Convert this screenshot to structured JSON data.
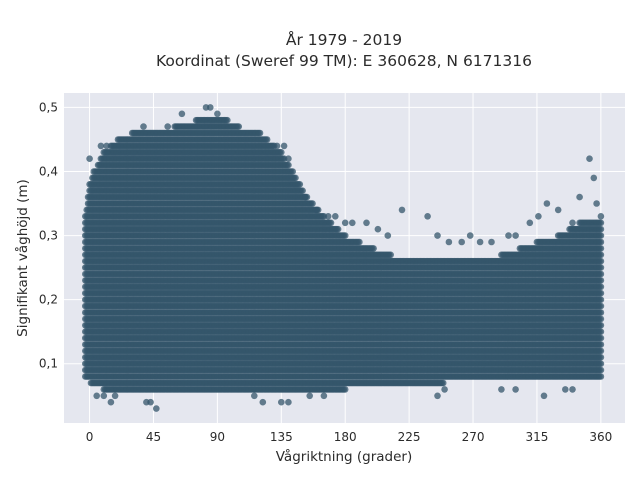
{
  "chart_data": {
    "type": "scatter",
    "title": "År 1979 - 2019",
    "subtitle": "Koordinat (Sweref 99 TM): E 360628, N 6171316",
    "xlabel": "Vågriktning (grader)",
    "ylabel": "Signifikant våghöjd (m)",
    "xlim": [
      -18,
      377
    ],
    "ylim": [
      0.0075,
      0.5225
    ],
    "x_ticks": [
      0,
      45,
      90,
      135,
      180,
      225,
      270,
      315,
      360
    ],
    "x_tick_labels": [
      "0",
      "45",
      "90",
      "135",
      "180",
      "225",
      "270",
      "315",
      "360"
    ],
    "y_ticks": [
      0.1,
      0.2,
      0.3,
      0.4,
      0.5
    ],
    "y_tick_labels": [
      "0,1",
      "0,2",
      "0,3",
      "0,4",
      "0,5"
    ],
    "grid": true,
    "colors": {
      "marker": "#34566b",
      "plot_bg": "#e5e7ef",
      "grid": "#ffffff"
    },
    "series": [
      {
        "envelope": {
          "x": [
            -3,
            0,
            10,
            20,
            30,
            45,
            60,
            75,
            90,
            105,
            120,
            135,
            150,
            165,
            180,
            200,
            225,
            250,
            270,
            290,
            315,
            330,
            345,
            360
          ],
          "y_max": [
            0.33,
            0.38,
            0.43,
            0.45,
            0.46,
            0.46,
            0.47,
            0.48,
            0.49,
            0.47,
            0.46,
            0.43,
            0.37,
            0.33,
            0.3,
            0.28,
            0.26,
            0.26,
            0.26,
            0.27,
            0.29,
            0.3,
            0.32,
            0.33
          ],
          "y_min": [
            0.07,
            0.07,
            0.06,
            0.06,
            0.06,
            0.055,
            0.055,
            0.055,
            0.055,
            0.055,
            0.055,
            0.055,
            0.06,
            0.06,
            0.06,
            0.065,
            0.065,
            0.07,
            0.07,
            0.07,
            0.07,
            0.07,
            0.07,
            0.07
          ]
        },
        "outliers": [
          [
            0,
            0.42
          ],
          [
            3,
            0.4
          ],
          [
            8,
            0.44
          ],
          [
            12,
            0.44
          ],
          [
            5,
            0.05
          ],
          [
            10,
            0.05
          ],
          [
            15,
            0.04
          ],
          [
            18,
            0.05
          ],
          [
            40,
            0.04
          ],
          [
            43,
            0.04
          ],
          [
            47,
            0.03
          ],
          [
            38,
            0.47
          ],
          [
            55,
            0.47
          ],
          [
            65,
            0.49
          ],
          [
            82,
            0.5
          ],
          [
            85,
            0.5
          ],
          [
            132,
            0.44
          ],
          [
            137,
            0.44
          ],
          [
            140,
            0.42
          ],
          [
            143,
            0.4
          ],
          [
            148,
            0.38
          ],
          [
            152,
            0.36
          ],
          [
            160,
            0.34
          ],
          [
            168,
            0.33
          ],
          [
            173,
            0.33
          ],
          [
            180,
            0.32
          ],
          [
            185,
            0.32
          ],
          [
            195,
            0.32
          ],
          [
            203,
            0.31
          ],
          [
            210,
            0.3
          ],
          [
            220,
            0.34
          ],
          [
            238,
            0.33
          ],
          [
            245,
            0.3
          ],
          [
            253,
            0.29
          ],
          [
            262,
            0.29
          ],
          [
            268,
            0.3
          ],
          [
            275,
            0.29
          ],
          [
            283,
            0.29
          ],
          [
            295,
            0.3
          ],
          [
            300,
            0.3
          ],
          [
            310,
            0.32
          ],
          [
            316,
            0.33
          ],
          [
            322,
            0.35
          ],
          [
            330,
            0.34
          ],
          [
            340,
            0.32
          ],
          [
            345,
            0.36
          ],
          [
            352,
            0.42
          ],
          [
            355,
            0.39
          ],
          [
            357,
            0.35
          ],
          [
            135,
            0.04
          ],
          [
            140,
            0.04
          ],
          [
            155,
            0.05
          ],
          [
            165,
            0.05
          ],
          [
            245,
            0.05
          ],
          [
            250,
            0.06
          ],
          [
            290,
            0.06
          ],
          [
            300,
            0.06
          ],
          [
            320,
            0.05
          ],
          [
            335,
            0.06
          ],
          [
            340,
            0.06
          ],
          [
            122,
            0.04
          ],
          [
            116,
            0.05
          ]
        ]
      }
    ]
  }
}
